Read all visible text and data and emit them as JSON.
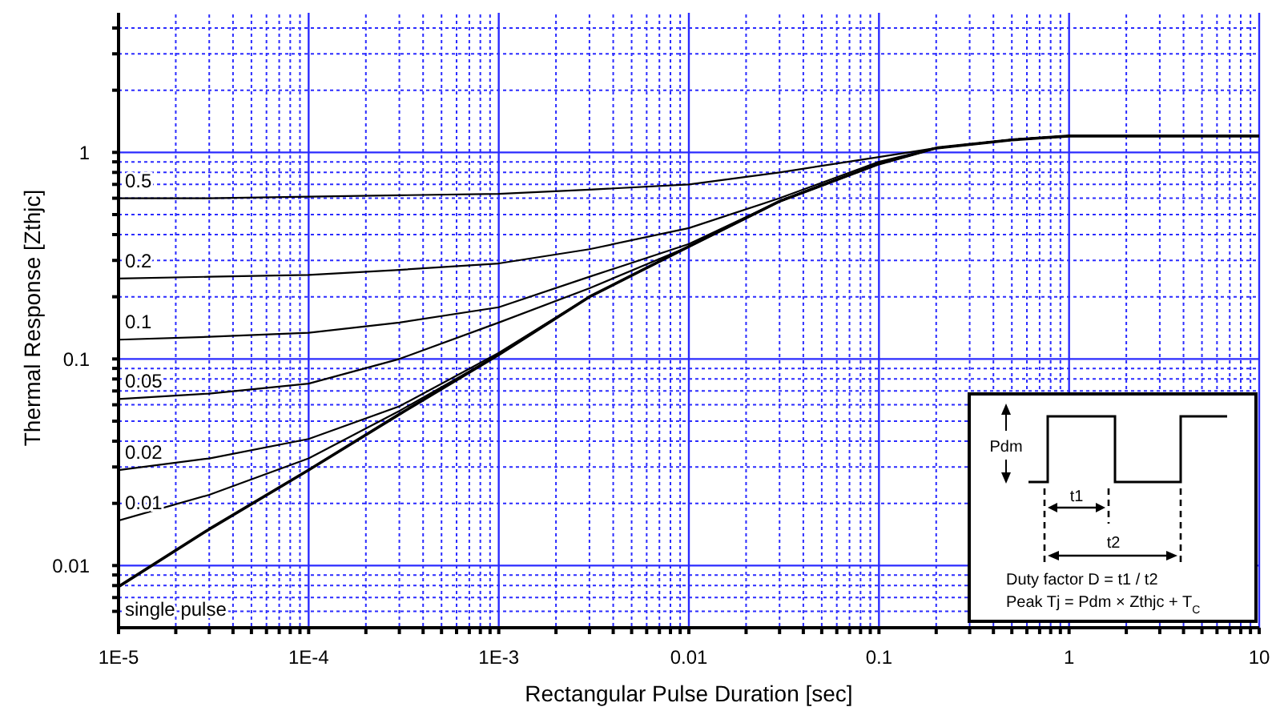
{
  "chart_data": {
    "type": "line",
    "xlabel": "Rectangular Pulse Duration [sec]",
    "ylabel": "Thermal Response [Zthjc]",
    "log": "xy",
    "grid": true,
    "xlim": [
      1e-05,
      10
    ],
    "ylim": [
      0.005,
      5
    ],
    "x": [
      1e-05,
      3e-05,
      0.0001,
      0.0003,
      0.001,
      0.003,
      0.01,
      0.03,
      0.1,
      0.2,
      0.5,
      1,
      10
    ],
    "series": [
      {
        "name": "0.5",
        "color": "#000000",
        "values": [
          0.6,
          0.6,
          0.61,
          0.62,
          0.63,
          0.66,
          0.7,
          0.8,
          0.95,
          1.05,
          1.15,
          1.2,
          1.2
        ]
      },
      {
        "name": "0.2",
        "color": "#000000",
        "values": [
          0.245,
          0.25,
          0.255,
          0.27,
          0.29,
          0.34,
          0.43,
          0.6,
          0.9,
          1.05,
          1.15,
          1.2,
          1.2
        ]
      },
      {
        "name": "0.1",
        "color": "#000000",
        "values": [
          0.124,
          0.128,
          0.134,
          0.15,
          0.178,
          0.25,
          0.36,
          0.58,
          0.88,
          1.05,
          1.15,
          1.2,
          1.2
        ]
      },
      {
        "name": "0.05",
        "color": "#000000",
        "values": [
          0.064,
          0.068,
          0.076,
          0.1,
          0.15,
          0.22,
          0.35,
          0.58,
          0.88,
          1.05,
          1.15,
          1.2,
          1.2
        ]
      },
      {
        "name": "0.02",
        "color": "#000000",
        "values": [
          0.029,
          0.033,
          0.041,
          0.059,
          0.107,
          0.2,
          0.35,
          0.58,
          0.88,
          1.05,
          1.15,
          1.2,
          1.2
        ]
      },
      {
        "name": "0.01",
        "color": "#000000",
        "values": [
          0.0165,
          0.022,
          0.033,
          0.056,
          0.105,
          0.2,
          0.35,
          0.58,
          0.88,
          1.05,
          1.15,
          1.2,
          1.2
        ]
      },
      {
        "name": "single pulse",
        "color": "#000000",
        "values": [
          0.0079,
          0.015,
          0.029,
          0.054,
          0.105,
          0.2,
          0.35,
          0.58,
          0.88,
          1.05,
          1.15,
          1.2,
          1.2
        ]
      }
    ],
    "xticks": [
      {
        "value": 1e-05,
        "label": "1E-5"
      },
      {
        "value": 2e-05,
        "label": null
      },
      {
        "value": 3e-05,
        "label": null
      },
      {
        "value": 4e-05,
        "label": null
      },
      {
        "value": 5e-05,
        "label": null
      },
      {
        "value": 6e-05,
        "label": null
      },
      {
        "value": 7e-05,
        "label": null
      },
      {
        "value": 8e-05,
        "label": null
      },
      {
        "value": 9e-05,
        "label": null
      },
      {
        "value": 0.0001,
        "label": "1E-4"
      },
      {
        "value": 0.0002,
        "label": null
      },
      {
        "value": 0.0003,
        "label": null
      },
      {
        "value": 0.0004,
        "label": null
      },
      {
        "value": 0.0005,
        "label": null
      },
      {
        "value": 0.0006,
        "label": null
      },
      {
        "value": 0.0007,
        "label": null
      },
      {
        "value": 0.0008,
        "label": null
      },
      {
        "value": 0.0009,
        "label": null
      },
      {
        "value": 0.001,
        "label": "1E-3"
      },
      {
        "value": 0.002,
        "label": null
      },
      {
        "value": 0.003,
        "label": null
      },
      {
        "value": 0.004,
        "label": null
      },
      {
        "value": 0.005,
        "label": null
      },
      {
        "value": 0.006,
        "label": null
      },
      {
        "value": 0.007,
        "label": null
      },
      {
        "value": 0.008,
        "label": null
      },
      {
        "value": 0.009,
        "label": null
      },
      0.01,
      {
        "value": 0.02,
        "label": null
      },
      {
        "value": 0.03,
        "label": null
      },
      {
        "value": 0.04,
        "label": null
      },
      {
        "value": 0.05,
        "label": null
      },
      {
        "value": 0.06,
        "label": null
      },
      {
        "value": 0.07,
        "label": null
      },
      {
        "value": 0.08,
        "label": null
      },
      {
        "value": 0.09,
        "label": null
      },
      0.1,
      {
        "value": 0.2,
        "label": null
      },
      {
        "value": 0.3,
        "label": null
      },
      {
        "value": 0.4,
        "label": null
      },
      {
        "value": 0.5,
        "label": null
      },
      {
        "value": 0.6,
        "label": null
      },
      {
        "value": 0.7,
        "label": null
      },
      {
        "value": 0.8,
        "label": null
      },
      {
        "value": 0.9,
        "label": null
      },
      1,
      {
        "value": 2,
        "label": null
      },
      {
        "value": 3,
        "label": null
      },
      {
        "value": 4,
        "label": null
      },
      {
        "value": 5,
        "label": null
      },
      {
        "value": 6,
        "label": null
      },
      {
        "value": 7,
        "label": null
      },
      {
        "value": 8,
        "label": null
      },
      {
        "value": 9,
        "label": null
      },
      10
    ],
    "yticks": [
      {
        "value": 0.006,
        "label": null
      },
      {
        "value": 0.007,
        "label": null
      },
      {
        "value": 0.008,
        "label": null
      },
      {
        "value": 0.009,
        "label": null
      },
      0.01,
      {
        "value": 0.02,
        "label": null
      },
      {
        "value": 0.03,
        "label": null
      },
      {
        "value": 0.04,
        "label": null
      },
      {
        "value": 0.05,
        "label": null
      },
      {
        "value": 0.06,
        "label": null
      },
      {
        "value": 0.07,
        "label": null
      },
      {
        "value": 0.08,
        "label": null
      },
      {
        "value": 0.09,
        "label": null
      },
      0.1,
      {
        "value": 0.2,
        "label": null
      },
      {
        "value": 0.3,
        "label": null
      },
      {
        "value": 0.4,
        "label": null
      },
      {
        "value": 0.5,
        "label": null
      },
      {
        "value": 0.6,
        "label": null
      },
      {
        "value": 0.7,
        "label": null
      },
      {
        "value": 0.8,
        "label": null
      },
      {
        "value": 0.9,
        "label": null
      },
      1,
      {
        "value": 2,
        "label": null
      },
      {
        "value": 3,
        "label": null
      },
      {
        "value": 4,
        "label": null
      }
    ],
    "annotations": [
      "Pdm",
      "t1",
      "t2",
      "Duty factor D = t1 / t2",
      "Peak Tj = Pdm × Zthjc + T$_{C}$"
    ]
  }
}
